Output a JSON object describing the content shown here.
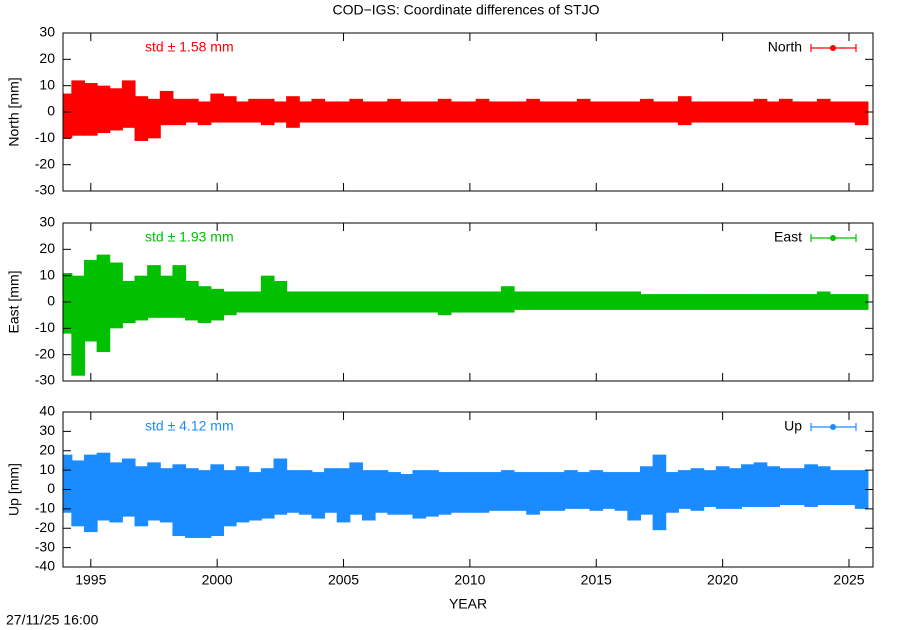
{
  "title": "COD−IGS: Coordinate differences of STJO",
  "timestamp": "27/11/25 16:00",
  "chart_data": [
    {
      "type": "range",
      "ylabel": "North [mm]",
      "annotation": "std ± 1.58 mm",
      "legend": "top-right",
      "xlim": [
        1993.9,
        2025.95
      ],
      "xticks": [
        1995,
        2000,
        2005,
        2010,
        2015,
        2020,
        2025
      ],
      "ylim": [
        -30,
        30
      ],
      "yticks": [
        -30,
        -20,
        -10,
        0,
        10,
        20,
        30
      ],
      "x": [
        1994,
        1994.5,
        1995,
        1995.5,
        1996,
        1996.5,
        1997,
        1997.5,
        1998,
        1998.5,
        1999,
        1999.5,
        2000,
        2000.5,
        2001,
        2001.5,
        2002,
        2002.5,
        2003,
        2003.5,
        2004,
        2004.5,
        2005,
        2005.5,
        2006,
        2006.5,
        2007,
        2007.5,
        2008,
        2008.5,
        2009,
        2009.5,
        2010,
        2010.5,
        2011,
        2011.5,
        2012,
        2012.5,
        2013,
        2013.5,
        2014,
        2014.5,
        2015,
        2015.5,
        2016,
        2016.5,
        2017,
        2017.5,
        2018,
        2018.5,
        2019,
        2019.5,
        2020,
        2020.5,
        2021,
        2021.5,
        2022,
        2022.5,
        2023,
        2023.5,
        2024,
        2024.5,
        2025,
        2025.5
      ],
      "series": [
        {
          "name": "North",
          "color": "#ff0000",
          "low": [
            -10,
            -9,
            -9,
            -8,
            -7,
            -6,
            -11,
            -10,
            -5,
            -5,
            -4,
            -5,
            -4,
            -4,
            -4,
            -4,
            -5,
            -4,
            -6,
            -4,
            -4,
            -4,
            -4,
            -4,
            -4,
            -4,
            -4,
            -4,
            -4,
            -4,
            -4,
            -4,
            -4,
            -4,
            -4,
            -4,
            -4,
            -4,
            -4,
            -4,
            -4,
            -4,
            -4,
            -4,
            -4,
            -4,
            -4,
            -4,
            -4,
            -5,
            -4,
            -4,
            -4,
            -4,
            -4,
            -4,
            -4,
            -4,
            -4,
            -4,
            -4,
            -4,
            -4,
            -5
          ],
          "high": [
            7,
            12,
            11,
            10,
            9,
            12,
            6,
            5,
            8,
            5,
            5,
            4,
            7,
            6,
            4,
            5,
            5,
            4,
            6,
            4,
            5,
            4,
            4,
            5,
            4,
            4,
            5,
            4,
            4,
            4,
            5,
            4,
            4,
            5,
            4,
            4,
            4,
            5,
            4,
            4,
            4,
            5,
            4,
            4,
            4,
            4,
            5,
            4,
            4,
            6,
            4,
            4,
            4,
            4,
            4,
            5,
            4,
            5,
            4,
            4,
            5,
            4,
            4,
            4
          ]
        }
      ]
    },
    {
      "type": "range",
      "ylabel": "East [mm]",
      "annotation": "std ± 1.93 mm",
      "legend": "top-right",
      "xlim": [
        1993.9,
        2025.95
      ],
      "xticks": [
        1995,
        2000,
        2005,
        2010,
        2015,
        2020,
        2025
      ],
      "ylim": [
        -30,
        30
      ],
      "yticks": [
        -30,
        -20,
        -10,
        0,
        10,
        20,
        30
      ],
      "x": [
        1994,
        1994.5,
        1995,
        1995.5,
        1996,
        1996.5,
        1997,
        1997.5,
        1998,
        1998.5,
        1999,
        1999.5,
        2000,
        2000.5,
        2001,
        2001.5,
        2002,
        2002.5,
        2003,
        2003.5,
        2004,
        2004.5,
        2005,
        2005.5,
        2006,
        2006.5,
        2007,
        2007.5,
        2008,
        2008.5,
        2009,
        2009.5,
        2010,
        2010.5,
        2011,
        2011.5,
        2012,
        2012.5,
        2013,
        2013.5,
        2014,
        2014.5,
        2015,
        2015.5,
        2016,
        2016.5,
        2017,
        2017.5,
        2018,
        2018.5,
        2019,
        2019.5,
        2020,
        2020.5,
        2021,
        2021.5,
        2022,
        2022.5,
        2023,
        2023.5,
        2024,
        2024.5,
        2025,
        2025.5
      ],
      "series": [
        {
          "name": "East",
          "color": "#00c000",
          "low": [
            -12,
            -28,
            -15,
            -19,
            -10,
            -8,
            -7,
            -6,
            -6,
            -6,
            -7,
            -8,
            -7,
            -5,
            -4,
            -4,
            -4,
            -4,
            -4,
            -4,
            -4,
            -4,
            -4,
            -4,
            -4,
            -4,
            -4,
            -4,
            -4,
            -4,
            -5,
            -4,
            -4,
            -4,
            -4,
            -4,
            -3,
            -3,
            -3,
            -3,
            -3,
            -3,
            -3,
            -3,
            -3,
            -3,
            -3,
            -3,
            -3,
            -3,
            -3,
            -3,
            -3,
            -3,
            -3,
            -3,
            -3,
            -3,
            -3,
            -3,
            -3,
            -3,
            -3,
            -3
          ],
          "high": [
            11,
            10,
            16,
            18,
            15,
            8,
            10,
            14,
            10,
            14,
            8,
            6,
            5,
            4,
            4,
            4,
            10,
            8,
            4,
            4,
            4,
            4,
            4,
            4,
            4,
            4,
            4,
            4,
            4,
            4,
            4,
            4,
            4,
            4,
            4,
            6,
            4,
            4,
            4,
            4,
            4,
            4,
            4,
            4,
            4,
            4,
            3,
            3,
            3,
            3,
            3,
            3,
            3,
            3,
            3,
            3,
            3,
            3,
            3,
            3,
            4,
            3,
            3,
            3
          ]
        }
      ]
    },
    {
      "type": "range",
      "ylabel": "Up [mm]",
      "xlabel": "YEAR",
      "annotation": "std ± 4.12 mm",
      "legend": "top-right",
      "xlim": [
        1993.9,
        2025.95
      ],
      "xticks": [
        1995,
        2000,
        2005,
        2010,
        2015,
        2020,
        2025
      ],
      "ylim": [
        -40,
        40
      ],
      "yticks": [
        -40,
        -30,
        -20,
        -10,
        0,
        10,
        20,
        30,
        40
      ],
      "x": [
        1994,
        1994.5,
        1995,
        1995.5,
        1996,
        1996.5,
        1997,
        1997.5,
        1998,
        1998.5,
        1999,
        1999.5,
        2000,
        2000.5,
        2001,
        2001.5,
        2002,
        2002.5,
        2003,
        2003.5,
        2004,
        2004.5,
        2005,
        2005.5,
        2006,
        2006.5,
        2007,
        2007.5,
        2008,
        2008.5,
        2009,
        2009.5,
        2010,
        2010.5,
        2011,
        2011.5,
        2012,
        2012.5,
        2013,
        2013.5,
        2014,
        2014.5,
        2015,
        2015.5,
        2016,
        2016.5,
        2017,
        2017.5,
        2018,
        2018.5,
        2019,
        2019.5,
        2020,
        2020.5,
        2021,
        2021.5,
        2022,
        2022.5,
        2023,
        2023.5,
        2024,
        2024.5,
        2025,
        2025.5
      ],
      "series": [
        {
          "name": "Up",
          "color": "#1a8cff",
          "low": [
            -12,
            -19,
            -22,
            -16,
            -17,
            -14,
            -19,
            -16,
            -17,
            -24,
            -25,
            -25,
            -24,
            -19,
            -17,
            -16,
            -15,
            -13,
            -12,
            -13,
            -15,
            -12,
            -17,
            -13,
            -16,
            -12,
            -13,
            -13,
            -15,
            -14,
            -13,
            -12,
            -12,
            -12,
            -11,
            -11,
            -11,
            -13,
            -11,
            -11,
            -10,
            -10,
            -11,
            -10,
            -11,
            -16,
            -13,
            -21,
            -12,
            -10,
            -11,
            -9,
            -10,
            -10,
            -9,
            -9,
            -9,
            -8,
            -8,
            -9,
            -8,
            -8,
            -8,
            -10
          ],
          "high": [
            18,
            15,
            18,
            19,
            14,
            16,
            12,
            14,
            11,
            13,
            11,
            10,
            13,
            10,
            12,
            9,
            11,
            16,
            10,
            10,
            9,
            11,
            11,
            14,
            10,
            10,
            9,
            8,
            10,
            10,
            9,
            9,
            9,
            9,
            9,
            10,
            9,
            9,
            9,
            9,
            10,
            9,
            10,
            9,
            9,
            9,
            12,
            18,
            9,
            10,
            11,
            10,
            12,
            11,
            13,
            14,
            12,
            11,
            11,
            13,
            12,
            10,
            10,
            10
          ]
        }
      ]
    }
  ]
}
